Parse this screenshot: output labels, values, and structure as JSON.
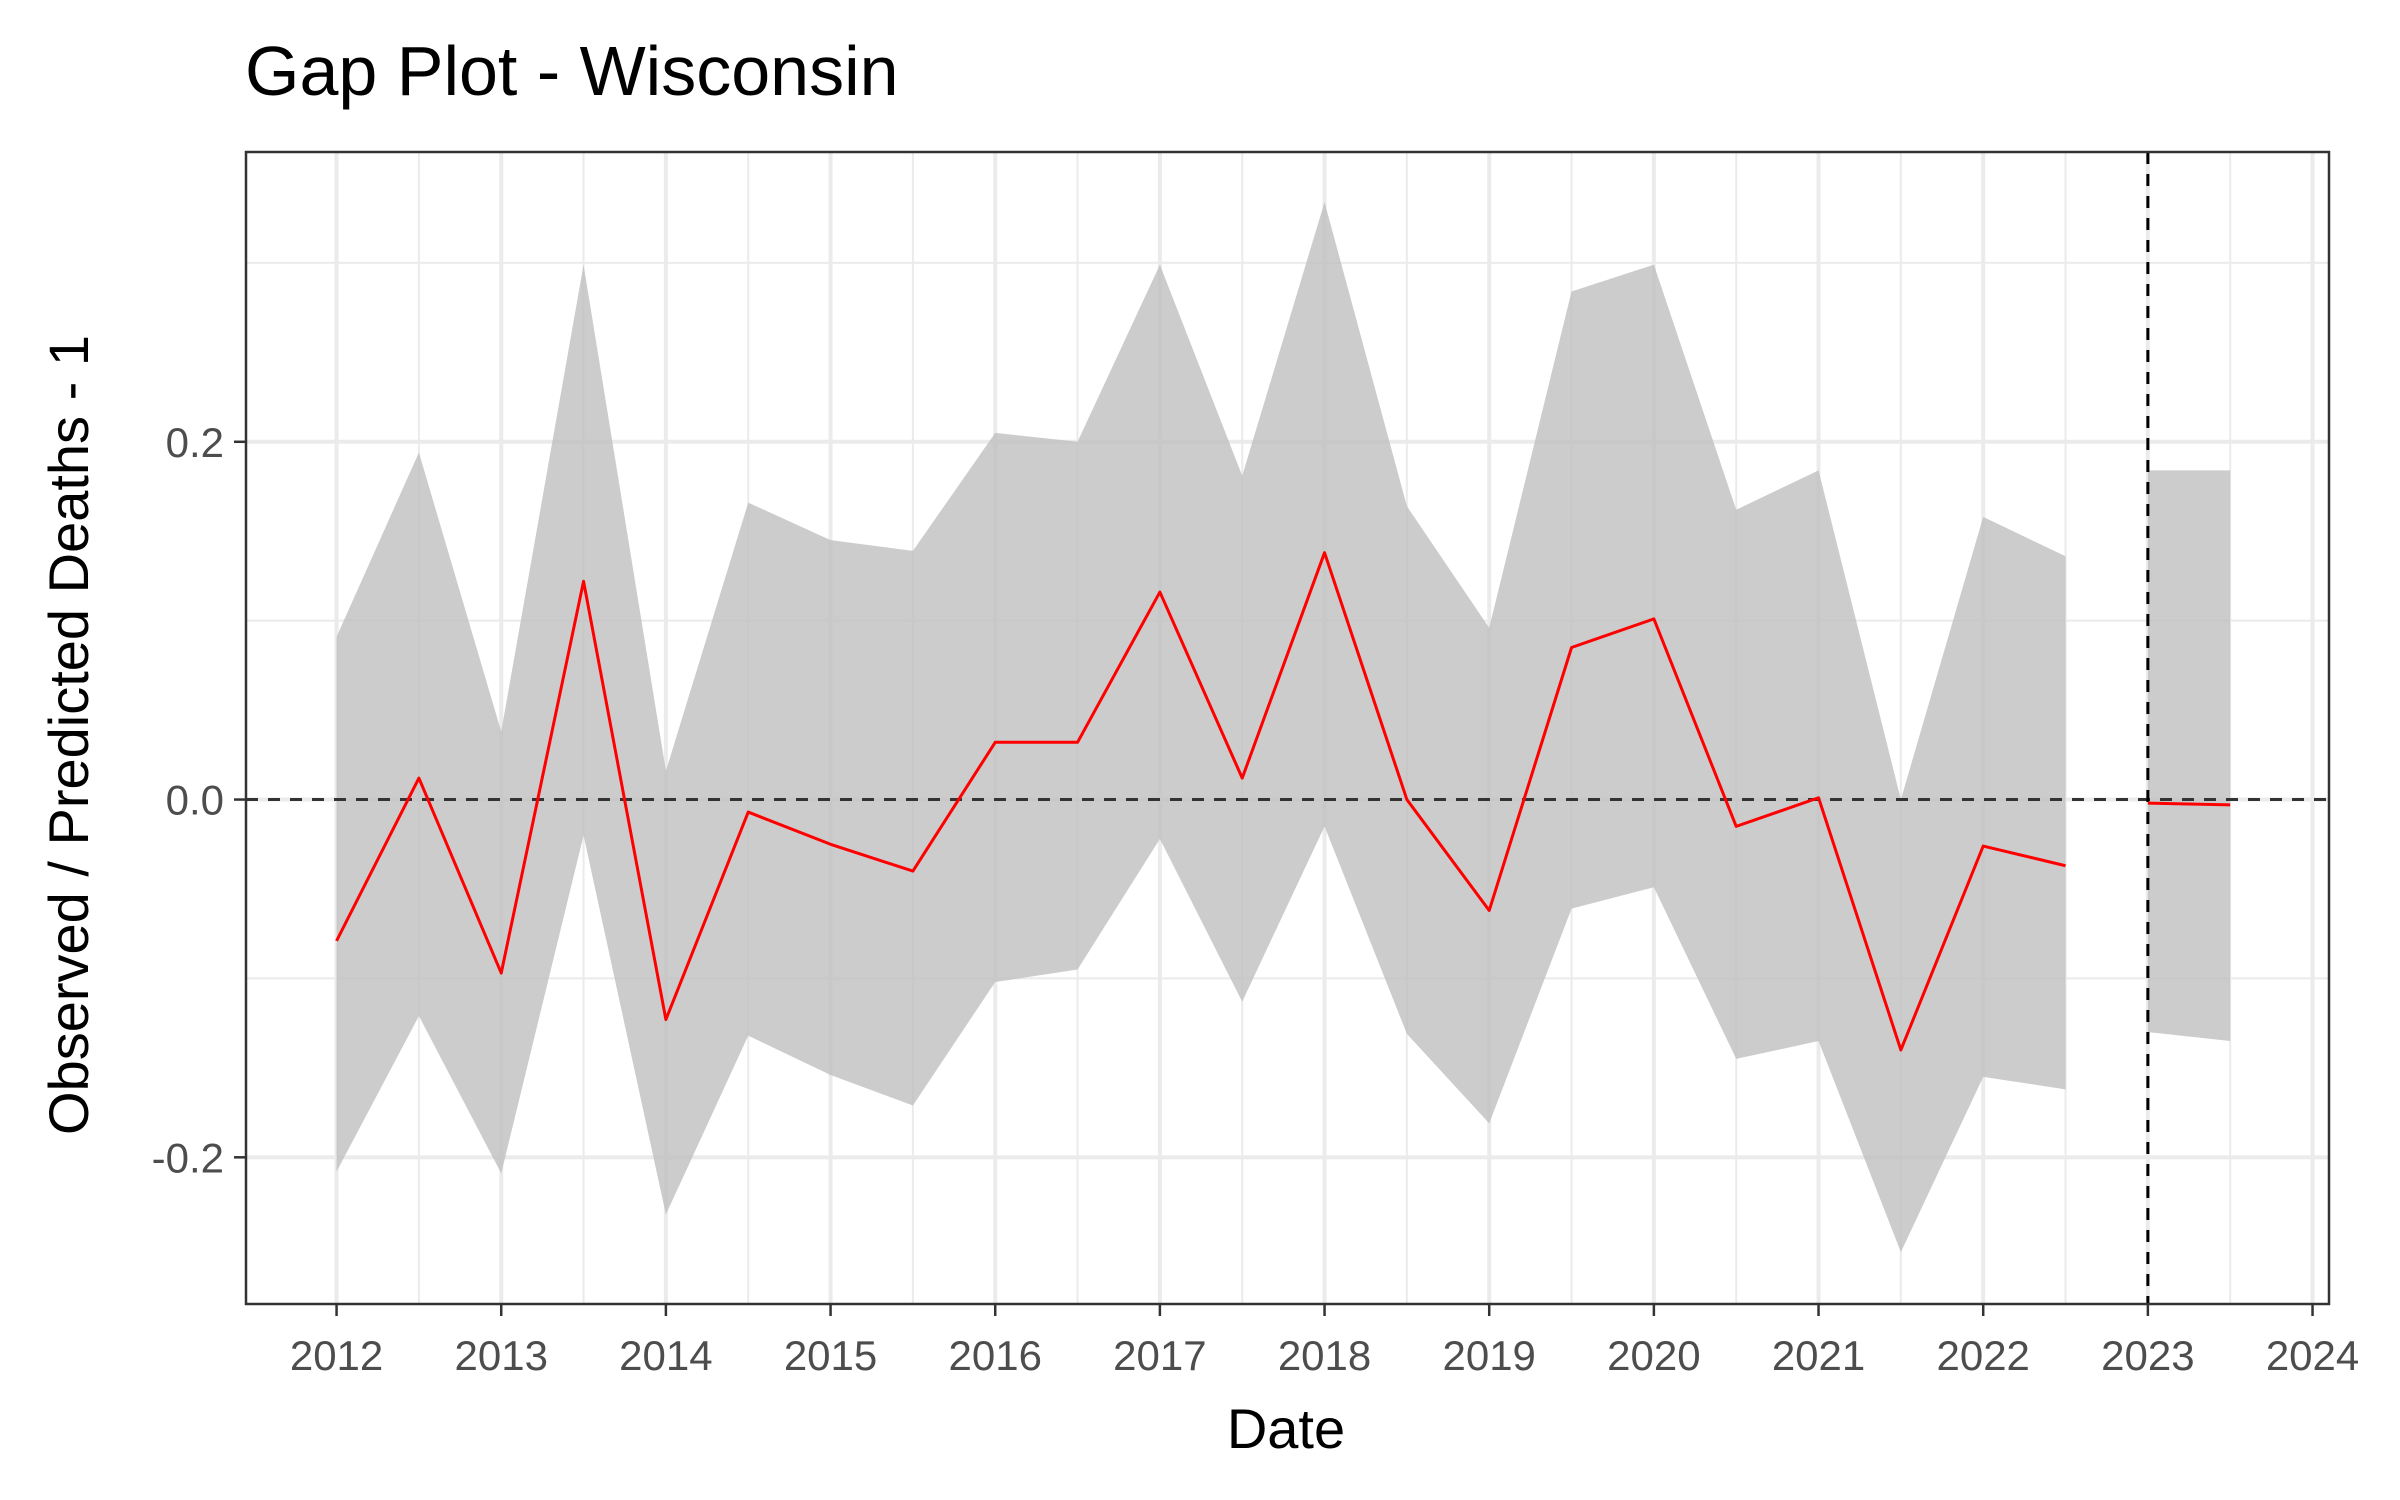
{
  "chart_data": {
    "type": "line",
    "title": "Gap Plot - Wisconsin",
    "xlabel": "Date",
    "ylabel": "Observed / Predicted Deaths - 1",
    "x_ticks": [
      "2012",
      "2013",
      "2014",
      "2015",
      "2016",
      "2017",
      "2018",
      "2019",
      "2020",
      "2021",
      "2022",
      "2023",
      "2024"
    ],
    "y_ticks": [
      "-0.2",
      "0.0",
      "0.2"
    ],
    "xlim": [
      2011.45,
      2024.1
    ],
    "ylim": [
      -0.282,
      0.362
    ],
    "grid": true,
    "colors": {
      "line": "#ff0000",
      "band": "#bebebe",
      "grid": "#ebebeb",
      "panel_border": "#333333",
      "ref_line": "#333333"
    },
    "reference_lines": {
      "horizontal_y": 0.0,
      "vertical_x": 2023.0
    },
    "series": [
      {
        "x": [
          2012.0,
          2012.5,
          2013.0,
          2013.5,
          2014.0,
          2014.5,
          2015.0,
          2015.5,
          2016.0,
          2016.5,
          2017.0,
          2017.5,
          2018.0,
          2018.5,
          2019.0,
          2019.5,
          2020.0,
          2020.5,
          2021.0,
          2021.5,
          2022.0,
          2022.5
        ],
        "y": [
          -0.079,
          0.012,
          -0.097,
          0.122,
          -0.123,
          -0.007,
          -0.025,
          -0.04,
          0.032,
          0.032,
          0.116,
          0.012,
          0.138,
          0.0,
          -0.062,
          0.085,
          0.101,
          -0.015,
          0.001,
          -0.14,
          -0.026,
          -0.037
        ],
        "lower": [
          -0.208,
          -0.121,
          -0.209,
          -0.02,
          -0.232,
          -0.132,
          -0.154,
          -0.171,
          -0.102,
          -0.095,
          -0.022,
          -0.113,
          -0.015,
          -0.131,
          -0.181,
          -0.061,
          -0.049,
          -0.145,
          -0.135,
          -0.253,
          -0.155,
          -0.162
        ],
        "upper": [
          0.091,
          0.194,
          0.038,
          0.299,
          0.016,
          0.166,
          0.145,
          0.139,
          0.205,
          0.2,
          0.299,
          0.181,
          0.334,
          0.164,
          0.096,
          0.284,
          0.299,
          0.162,
          0.184,
          0.0,
          0.158,
          0.136
        ]
      },
      {
        "x": [
          2023.0,
          2023.5
        ],
        "y": [
          -0.002,
          -0.003
        ],
        "lower": [
          -0.13,
          -0.135
        ],
        "upper": [
          0.184,
          0.184
        ]
      }
    ]
  }
}
